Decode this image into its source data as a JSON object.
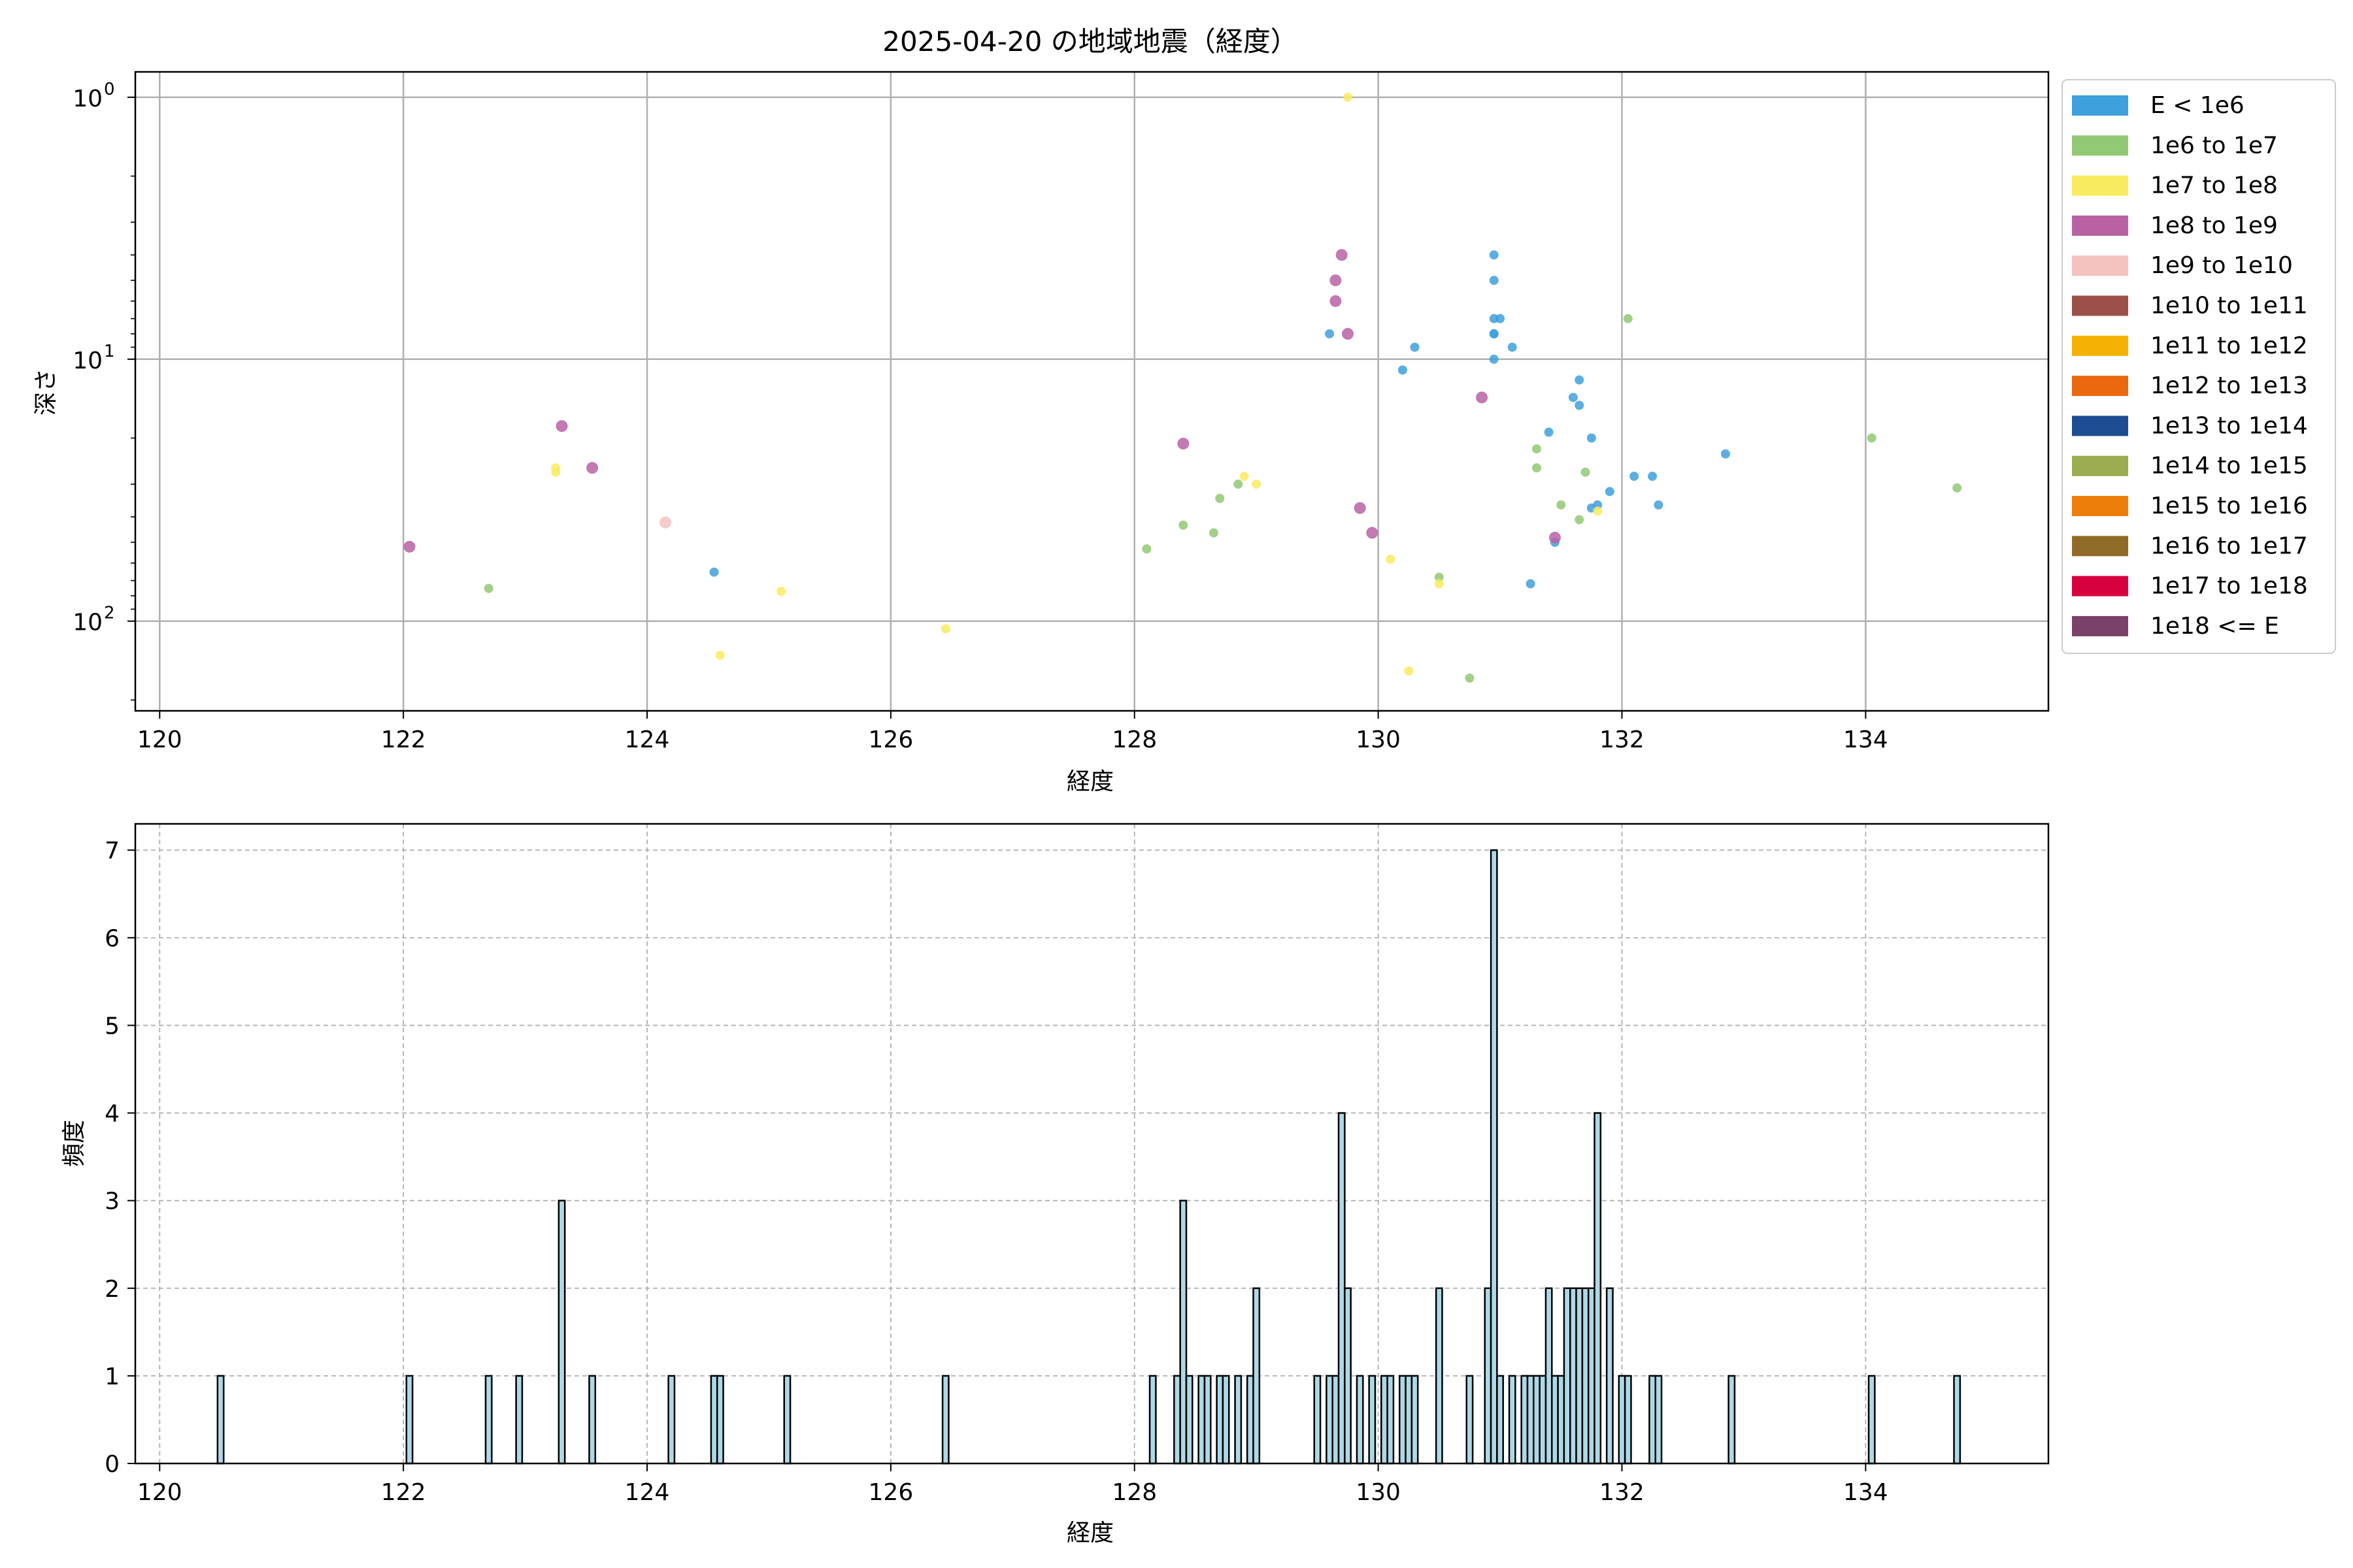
{
  "figure": {
    "title": "2025-04-20 の地域地震（経度）"
  },
  "chart_data": [
    {
      "type": "scatter",
      "title": "2025-04-20 の地域地震（経度）",
      "xlabel": "経度",
      "ylabel": "深さ",
      "xlim": [
        119.8,
        135.5
      ],
      "ylim": [
        220,
        0.8
      ],
      "yscale": "log",
      "y_inverted": true,
      "grid": true,
      "legend_position": "outside-right",
      "x_ticks": [
        120,
        122,
        124,
        126,
        128,
        130,
        132,
        134
      ],
      "y_ticks": [
        {
          "value": 1,
          "base": "10",
          "exp": "0"
        },
        {
          "value": 10,
          "base": "10",
          "exp": "1"
        },
        {
          "value": 100,
          "base": "10",
          "exp": "2"
        }
      ],
      "legend": [
        {
          "label": "E < 1e6",
          "color": "#3ea0dc"
        },
        {
          "label": "1e6 to 1e7",
          "color": "#93c874"
        },
        {
          "label": "1e7 to 1e8",
          "color": "#f9eb5f"
        },
        {
          "label": "1e8 to 1e9",
          "color": "#b862a4"
        },
        {
          "label": "1e9 to 1e10",
          "color": "#f4c2bf"
        },
        {
          "label": "1e10 to 1e11",
          "color": "#9b5148"
        },
        {
          "label": "1e11 to 1e12",
          "color": "#f6b204"
        },
        {
          "label": "1e12 to 1e13",
          "color": "#ea680e"
        },
        {
          "label": "1e13 to 1e14",
          "color": "#1d4c91"
        },
        {
          "label": "1e14 to 1e15",
          "color": "#9aad50"
        },
        {
          "label": "1e15 to 1e16",
          "color": "#ee7e0a"
        },
        {
          "label": "1e16 to 1e17",
          "color": "#906b28"
        },
        {
          "label": "1e17 to 1e18",
          "color": "#d7013d"
        },
        {
          "label": "1e18 <= E",
          "color": "#7a416b"
        }
      ],
      "series": [
        {
          "class": 0,
          "color": "#3ea0dc",
          "size": "small",
          "points": [
            [
              124.55,
              65
            ],
            [
              129.6,
              8
            ],
            [
              130.2,
              11
            ],
            [
              130.3,
              9
            ],
            [
              130.95,
              4
            ],
            [
              130.95,
              5
            ],
            [
              130.95,
              7
            ],
            [
              130.95,
              8
            ],
            [
              131.0,
              7
            ],
            [
              130.95,
              8
            ],
            [
              131.1,
              9
            ],
            [
              130.95,
              10
            ],
            [
              131.65,
              12
            ],
            [
              131.65,
              15
            ],
            [
              131.6,
              14
            ],
            [
              131.4,
              19
            ],
            [
              131.75,
              20
            ],
            [
              131.25,
              72
            ],
            [
              131.9,
              32
            ],
            [
              132.1,
              28
            ],
            [
              132.25,
              28
            ],
            [
              132.3,
              36
            ],
            [
              131.45,
              50
            ],
            [
              131.75,
              37
            ],
            [
              131.8,
              36
            ],
            [
              132.85,
              23
            ]
          ]
        },
        {
          "class": 1,
          "color": "#93c874",
          "size": "small",
          "points": [
            [
              122.7,
              75
            ],
            [
              128.1,
              53
            ],
            [
              128.4,
              43
            ],
            [
              128.65,
              46
            ],
            [
              128.7,
              34
            ],
            [
              128.85,
              30
            ],
            [
              130.5,
              68
            ],
            [
              130.75,
              165
            ],
            [
              131.3,
              22
            ],
            [
              131.3,
              26
            ],
            [
              131.5,
              36
            ],
            [
              131.65,
              41
            ],
            [
              131.7,
              27
            ],
            [
              132.05,
              7
            ],
            [
              134.05,
              20
            ],
            [
              134.75,
              31
            ]
          ]
        },
        {
          "class": 2,
          "color": "#f9eb5f",
          "size": "small",
          "points": [
            [
              123.25,
              26
            ],
            [
              123.25,
              27
            ],
            [
              124.6,
              135
            ],
            [
              125.1,
              77
            ],
            [
              126.45,
              107
            ],
            [
              128.9,
              28
            ],
            [
              129.0,
              30
            ],
            [
              129.75,
              1.0
            ],
            [
              130.1,
              58
            ],
            [
              130.25,
              155
            ],
            [
              130.5,
              72
            ],
            [
              131.8,
              38
            ]
          ]
        },
        {
          "class": 3,
          "color": "#b862a4",
          "size": "large",
          "points": [
            [
              122.05,
              52
            ],
            [
              123.3,
              18
            ],
            [
              123.55,
              26
            ],
            [
              128.4,
              21
            ],
            [
              129.65,
              6
            ],
            [
              129.65,
              5
            ],
            [
              129.7,
              4
            ],
            [
              129.75,
              8
            ],
            [
              129.85,
              37
            ],
            [
              129.95,
              46
            ],
            [
              130.85,
              14
            ],
            [
              131.45,
              48
            ]
          ]
        },
        {
          "class": 4,
          "color": "#f4c2bf",
          "size": "large",
          "points": [
            [
              124.15,
              42
            ]
          ]
        }
      ]
    },
    {
      "type": "bar",
      "title": "",
      "xlabel": "経度",
      "ylabel": "頻度",
      "xlim": [
        119.8,
        135.5
      ],
      "ylim": [
        0,
        7.3
      ],
      "grid": true,
      "x_ticks": [
        120,
        122,
        124,
        126,
        128,
        130,
        132,
        134
      ],
      "y_ticks": [
        0,
        1,
        2,
        3,
        4,
        5,
        6,
        7
      ],
      "bar_color": "#add8e6",
      "bar_edge_color": "#000000",
      "bin_width": 0.05,
      "bars": [
        [
          120.5,
          1
        ],
        [
          122.05,
          1
        ],
        [
          122.7,
          1
        ],
        [
          122.95,
          1
        ],
        [
          123.3,
          3
        ],
        [
          123.55,
          1
        ],
        [
          124.2,
          1
        ],
        [
          124.55,
          1
        ],
        [
          124.6,
          1
        ],
        [
          125.15,
          1
        ],
        [
          126.45,
          1
        ],
        [
          128.15,
          1
        ],
        [
          128.35,
          1
        ],
        [
          128.4,
          3
        ],
        [
          128.45,
          1
        ],
        [
          128.55,
          1
        ],
        [
          128.6,
          1
        ],
        [
          128.7,
          1
        ],
        [
          128.75,
          1
        ],
        [
          128.85,
          1
        ],
        [
          128.95,
          1
        ],
        [
          129.0,
          2
        ],
        [
          129.5,
          1
        ],
        [
          129.6,
          1
        ],
        [
          129.65,
          1
        ],
        [
          129.7,
          4
        ],
        [
          129.75,
          2
        ],
        [
          129.85,
          1
        ],
        [
          129.95,
          1
        ],
        [
          130.05,
          1
        ],
        [
          130.1,
          1
        ],
        [
          130.2,
          1
        ],
        [
          130.25,
          1
        ],
        [
          130.3,
          1
        ],
        [
          130.5,
          2
        ],
        [
          130.75,
          1
        ],
        [
          130.9,
          2
        ],
        [
          130.95,
          7
        ],
        [
          131.0,
          1
        ],
        [
          131.1,
          1
        ],
        [
          131.2,
          1
        ],
        [
          131.25,
          1
        ],
        [
          131.3,
          1
        ],
        [
          131.35,
          1
        ],
        [
          131.4,
          2
        ],
        [
          131.45,
          1
        ],
        [
          131.5,
          1
        ],
        [
          131.55,
          2
        ],
        [
          131.6,
          2
        ],
        [
          131.65,
          2
        ],
        [
          131.7,
          2
        ],
        [
          131.75,
          2
        ],
        [
          131.8,
          4
        ],
        [
          131.9,
          2
        ],
        [
          132.0,
          1
        ],
        [
          132.05,
          1
        ],
        [
          132.25,
          1
        ],
        [
          132.3,
          1
        ],
        [
          132.9,
          1
        ],
        [
          134.05,
          1
        ],
        [
          134.75,
          1
        ]
      ]
    }
  ]
}
